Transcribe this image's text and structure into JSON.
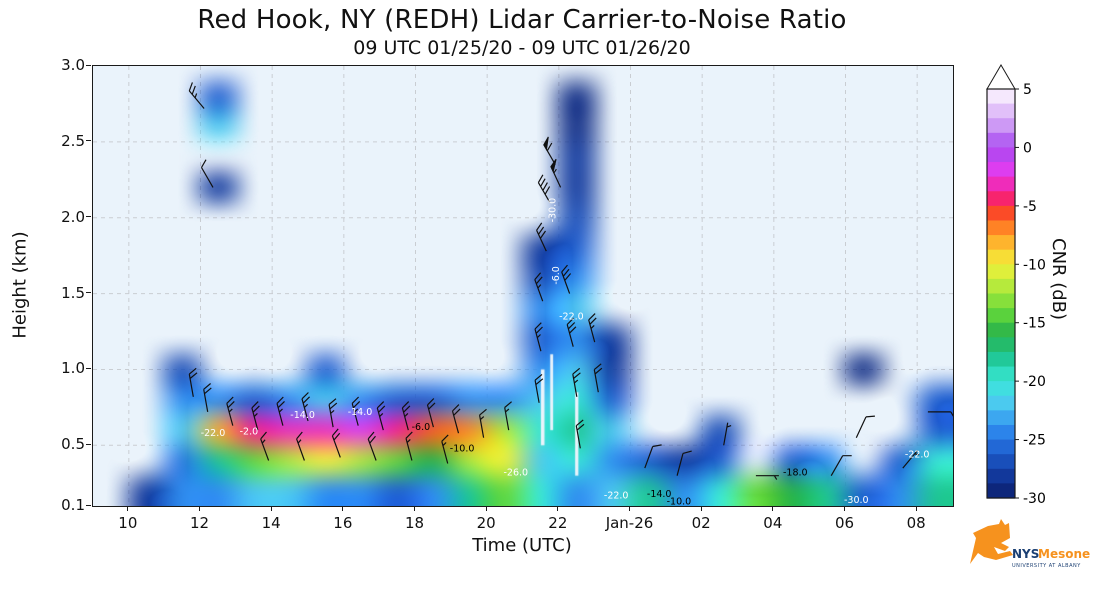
{
  "chart_data": {
    "type": "heatmap",
    "title": "Red Hook, NY (REDH) Lidar Carrier-to-Noise Ratio",
    "subtitle": "09 UTC 01/25/20 - 09 UTC 01/26/20",
    "xlabel": "Time (UTC)",
    "ylabel": "Height (km)",
    "x_range": [
      9,
      33
    ],
    "y_range": [
      0.1,
      3.0
    ],
    "grid_on": true,
    "x_ticks": [
      {
        "t": 10,
        "label": "10"
      },
      {
        "t": 12,
        "label": "12"
      },
      {
        "t": 14,
        "label": "14"
      },
      {
        "t": 16,
        "label": "16"
      },
      {
        "t": 18,
        "label": "18"
      },
      {
        "t": 20,
        "label": "20"
      },
      {
        "t": 22,
        "label": "22"
      },
      {
        "t": 24,
        "label": "Jan-26"
      },
      {
        "t": 26,
        "label": "02"
      },
      {
        "t": 28,
        "label": "04"
      },
      {
        "t": 30,
        "label": "06"
      },
      {
        "t": 32,
        "label": "08"
      }
    ],
    "y_ticks": [
      {
        "h": 0.1,
        "label": "0.1"
      },
      {
        "h": 0.5,
        "label": "0.5"
      },
      {
        "h": 1.0,
        "label": "1.0"
      },
      {
        "h": 1.5,
        "label": "1.5"
      },
      {
        "h": 2.0,
        "label": "2.0"
      },
      {
        "h": 2.5,
        "label": "2.5"
      },
      {
        "h": 3.0,
        "label": "3.0"
      }
    ],
    "colorbar": {
      "label": "CNR (dB)",
      "min": -30,
      "max": 5,
      "over_arrow": true,
      "bands": 28,
      "ticks": [
        {
          "v": 5,
          "label": "5"
        },
        {
          "v": 0,
          "label": "0"
        },
        {
          "v": -5,
          "label": "-5"
        },
        {
          "v": -10,
          "label": "-10"
        },
        {
          "v": -15,
          "label": "-15"
        },
        {
          "v": -20,
          "label": "-20"
        },
        {
          "v": -25,
          "label": "-25"
        },
        {
          "v": -30,
          "label": "-30"
        }
      ]
    },
    "colormap": [
      [
        -30,
        "#0b1d6b"
      ],
      [
        -28,
        "#123a9e"
      ],
      [
        -26,
        "#1f5fd0"
      ],
      [
        -24,
        "#2f8df0"
      ],
      [
        -22,
        "#4cc8f0"
      ],
      [
        -20,
        "#3ae8d8"
      ],
      [
        -18,
        "#1fc795"
      ],
      [
        -16,
        "#27b14b"
      ],
      [
        -14,
        "#66d93a"
      ],
      [
        -12,
        "#b2ea3c"
      ],
      [
        -10,
        "#f4f13a"
      ],
      [
        -8,
        "#ffb02c"
      ],
      [
        -6,
        "#ff5f1f"
      ],
      [
        -5,
        "#f32a34"
      ],
      [
        -4,
        "#fa2090"
      ],
      [
        -2,
        "#e13cf0"
      ],
      [
        0,
        "#a74af0"
      ],
      [
        2,
        "#cf9ef5"
      ],
      [
        4,
        "#efdafc"
      ],
      [
        5,
        "#ffffff"
      ]
    ],
    "heatmap": {
      "t0": 9,
      "dt": 1,
      "h0": 0.1,
      "dh": 0.2,
      "grid": [
        [
          null,
          -28,
          -24,
          -24,
          -22,
          -22,
          -24,
          -24,
          -26,
          -24,
          -18,
          -14,
          -20,
          -24,
          -22,
          -18,
          -24,
          -20,
          -14,
          -16,
          -18,
          -26,
          -24,
          -18
        ],
        [
          null,
          null,
          -25,
          -18,
          -14,
          -12,
          -10,
          -12,
          -14,
          -16,
          -12,
          -10,
          -22,
          -20,
          -24,
          -26,
          -28,
          -26,
          null,
          -26,
          -24,
          null,
          -26,
          -20
        ],
        [
          null,
          null,
          -22,
          -8,
          -4,
          -3,
          -3,
          -2,
          -4,
          -6,
          -7,
          -12,
          -20,
          -18,
          -22,
          null,
          null,
          -27,
          null,
          null,
          null,
          null,
          null,
          -26
        ],
        [
          null,
          null,
          -24,
          -24,
          -26,
          -24,
          -22,
          -24,
          -26,
          -26,
          -24,
          -24,
          -22,
          -20,
          -26,
          null,
          null,
          null,
          null,
          null,
          null,
          null,
          null,
          -26
        ],
        [
          null,
          null,
          -27,
          null,
          null,
          null,
          -26,
          null,
          null,
          null,
          null,
          null,
          -24,
          -22,
          -28,
          null,
          null,
          null,
          null,
          null,
          null,
          -29,
          null,
          null
        ],
        [
          null,
          null,
          null,
          null,
          null,
          null,
          null,
          null,
          null,
          null,
          null,
          null,
          -26,
          -24,
          -28,
          null,
          null,
          null,
          null,
          null,
          null,
          null,
          null,
          null
        ],
        [
          null,
          null,
          null,
          null,
          null,
          null,
          null,
          null,
          null,
          null,
          null,
          null,
          -24,
          -22,
          null,
          null,
          null,
          null,
          null,
          null,
          null,
          null,
          null,
          null
        ],
        [
          null,
          null,
          null,
          null,
          null,
          null,
          null,
          null,
          null,
          null,
          null,
          null,
          -27,
          -24,
          null,
          null,
          null,
          null,
          null,
          null,
          null,
          null,
          null,
          null
        ],
        [
          null,
          null,
          null,
          null,
          null,
          null,
          null,
          null,
          null,
          null,
          null,
          null,
          -28,
          -26,
          null,
          null,
          null,
          null,
          null,
          null,
          null,
          null,
          null,
          null
        ],
        [
          null,
          null,
          null,
          null,
          null,
          null,
          null,
          null,
          null,
          null,
          null,
          null,
          null,
          -27,
          null,
          null,
          null,
          null,
          null,
          null,
          null,
          null,
          null,
          null
        ],
        [
          null,
          null,
          null,
          -28,
          null,
          null,
          null,
          null,
          null,
          null,
          null,
          null,
          null,
          -28,
          null,
          null,
          null,
          null,
          null,
          null,
          null,
          null,
          null,
          null
        ],
        [
          null,
          null,
          null,
          null,
          null,
          null,
          null,
          null,
          null,
          null,
          null,
          null,
          null,
          -28,
          null,
          null,
          null,
          null,
          null,
          null,
          null,
          null,
          null,
          null
        ],
        [
          null,
          null,
          null,
          -22,
          null,
          null,
          null,
          null,
          null,
          null,
          null,
          null,
          null,
          -29,
          null,
          null,
          null,
          null,
          null,
          null,
          null,
          null,
          null,
          null
        ],
        [
          null,
          null,
          null,
          -26,
          null,
          null,
          null,
          null,
          null,
          null,
          null,
          null,
          null,
          -29,
          null,
          null,
          null,
          null,
          null,
          null,
          null,
          null,
          null,
          null
        ],
        [
          null,
          null,
          null,
          null,
          null,
          null,
          null,
          null,
          null,
          null,
          null,
          null,
          null,
          null,
          null,
          null,
          null,
          null,
          null,
          null,
          null,
          null,
          null,
          null
        ]
      ]
    },
    "data_gaps": [
      {
        "t": 21.55,
        "h0": 0.5,
        "h1": 1.0,
        "w": 0.1
      },
      {
        "t": 21.8,
        "h0": 0.6,
        "h1": 1.1,
        "w": 0.08
      },
      {
        "t": 22.5,
        "h0": 0.3,
        "h1": 0.85,
        "w": 0.09
      }
    ],
    "wind_barbs": [
      [
        11.8,
        0.82,
        350,
        20
      ],
      [
        12.2,
        0.72,
        350,
        20
      ],
      [
        12.9,
        0.63,
        345,
        25
      ],
      [
        13.6,
        0.6,
        345,
        25
      ],
      [
        14.3,
        0.63,
        345,
        25
      ],
      [
        15.0,
        0.66,
        345,
        25
      ],
      [
        15.7,
        0.62,
        350,
        25
      ],
      [
        16.4,
        0.63,
        345,
        25
      ],
      [
        17.1,
        0.6,
        345,
        25
      ],
      [
        17.8,
        0.6,
        345,
        25
      ],
      [
        18.5,
        0.62,
        345,
        20
      ],
      [
        19.2,
        0.58,
        345,
        20
      ],
      [
        19.9,
        0.55,
        350,
        15
      ],
      [
        20.6,
        0.6,
        350,
        15
      ],
      [
        13.9,
        0.4,
        340,
        15
      ],
      [
        14.9,
        0.4,
        340,
        15
      ],
      [
        15.9,
        0.42,
        340,
        20
      ],
      [
        16.9,
        0.4,
        340,
        20
      ],
      [
        17.9,
        0.4,
        345,
        15
      ],
      [
        18.9,
        0.38,
        345,
        15
      ],
      [
        12.1,
        2.72,
        320,
        25
      ],
      [
        12.35,
        2.2,
        330,
        10
      ],
      [
        21.45,
        0.78,
        350,
        20
      ],
      [
        21.5,
        1.12,
        345,
        25
      ],
      [
        21.55,
        1.45,
        340,
        25
      ],
      [
        21.65,
        1.78,
        335,
        30
      ],
      [
        21.75,
        2.1,
        330,
        40
      ],
      [
        21.9,
        2.35,
        330,
        60
      ],
      [
        22.05,
        2.2,
        335,
        55
      ],
      [
        22.3,
        1.5,
        340,
        30
      ],
      [
        22.4,
        1.15,
        345,
        30
      ],
      [
        22.5,
        0.82,
        350,
        25
      ],
      [
        22.6,
        0.48,
        350,
        20
      ],
      [
        23.0,
        1.18,
        345,
        25
      ],
      [
        23.1,
        0.85,
        350,
        20
      ],
      [
        24.4,
        0.35,
        20,
        10
      ],
      [
        25.3,
        0.3,
        15,
        10
      ],
      [
        26.6,
        0.5,
        10,
        5
      ],
      [
        27.5,
        0.3,
        90,
        5
      ],
      [
        29.6,
        0.3,
        30,
        10
      ],
      [
        30.3,
        0.55,
        25,
        10
      ],
      [
        31.6,
        0.35,
        40,
        5
      ],
      [
        32.3,
        0.72,
        90,
        10
      ]
    ],
    "contour_labels": [
      {
        "t": 12.35,
        "h": 0.56,
        "text": "-22.0",
        "c": "#ffffff",
        "rot": 0
      },
      {
        "t": 13.35,
        "h": 0.57,
        "text": "-2.0",
        "c": "#ffffff",
        "rot": 0
      },
      {
        "t": 14.85,
        "h": 0.68,
        "text": "-14.0",
        "c": "#ffffff",
        "rot": 0
      },
      {
        "t": 16.45,
        "h": 0.7,
        "text": "-14.0",
        "c": "#ffffff",
        "rot": 0
      },
      {
        "t": 18.15,
        "h": 0.6,
        "text": "-6.0",
        "c": "#000000",
        "rot": 0
      },
      {
        "t": 19.3,
        "h": 0.46,
        "text": "-10.0",
        "c": "#000000",
        "rot": 0
      },
      {
        "t": 20.8,
        "h": 0.3,
        "text": "-26.0",
        "c": "#ffffff",
        "rot": 0
      },
      {
        "t": 21.9,
        "h": 2.05,
        "text": "-30.0",
        "c": "#ffffff",
        "rot": 90
      },
      {
        "t": 22.0,
        "h": 1.62,
        "text": "-6.0",
        "c": "#ffffff",
        "rot": 90
      },
      {
        "t": 22.35,
        "h": 1.33,
        "text": "-22.0",
        "c": "#ffffff",
        "rot": 0
      },
      {
        "t": 23.6,
        "h": 0.15,
        "text": "-22.0",
        "c": "#ffffff",
        "rot": 0
      },
      {
        "t": 24.8,
        "h": 0.16,
        "text": "-14.0",
        "c": "#000000",
        "rot": 0
      },
      {
        "t": 25.35,
        "h": 0.11,
        "text": "-10.0",
        "c": "#000000",
        "rot": 0
      },
      {
        "t": 28.6,
        "h": 0.3,
        "text": "-18.0",
        "c": "#000000",
        "rot": 0
      },
      {
        "t": 30.3,
        "h": 0.12,
        "text": "-30.0",
        "c": "#ffffff",
        "rot": 0
      },
      {
        "t": 32.0,
        "h": 0.42,
        "text": "-22.0",
        "c": "#ffffff",
        "rot": 0
      }
    ]
  },
  "colors": {
    "plot_bg": "#eaf3fb",
    "grid": "#c9cdd2",
    "axis": "#1a1a1a",
    "barb": "#111111",
    "logo_orange": "#f6921e",
    "logo_navy": "#1b3f72"
  },
  "logo": {
    "nys": "NYS",
    "mesonet": "Mesonet",
    "tagline": "UNIVERSITY AT ALBANY"
  }
}
